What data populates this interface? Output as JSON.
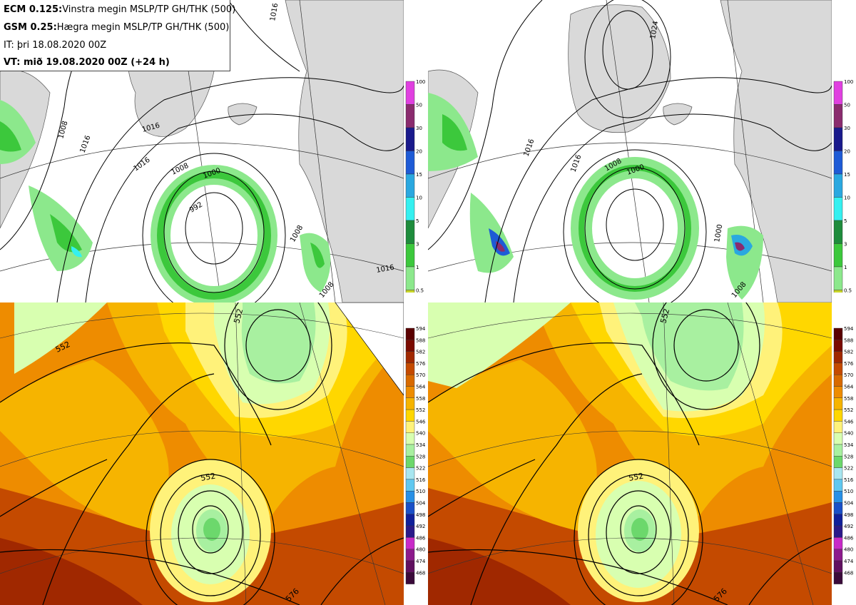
{
  "info": {
    "line1_bold": "ECM 0.125:",
    "line1_text": "Vinstra megin MSLP/TP GH/THK (500)",
    "line2_bold": "GSM 0.25:",
    "line2_text": "Hægra megin MSLP/TP GH/THK (500)",
    "line3": "IT: þri 18.08.2020 00Z",
    "line4": "VT: mið 19.08.2020 00Z (+24 h)"
  },
  "precip_colorbar": {
    "labels": [
      "100",
      "50",
      "30",
      "20",
      "15",
      "10",
      "5",
      "3",
      "1",
      "0.5"
    ],
    "colors": [
      "#e040e0",
      "#8a2b6e",
      "#1a1a8c",
      "#1e5bd6",
      "#2aa8e0",
      "#35f0f0",
      "#1e8c3c",
      "#3cc83c",
      "#8ce88c",
      "#c8d628"
    ]
  },
  "thickness_colorbar": {
    "labels": [
      "594",
      "588",
      "582",
      "576",
      "570",
      "564",
      "558",
      "552",
      "546",
      "540",
      "534",
      "528",
      "522",
      "516",
      "510",
      "504",
      "498",
      "492",
      "486",
      "480",
      "474",
      "468"
    ],
    "colors": [
      "#5a0000",
      "#7a0a00",
      "#a02800",
      "#c44a00",
      "#d86a00",
      "#ee8c00",
      "#f6b400",
      "#ffd700",
      "#fff27a",
      "#d8ffb0",
      "#a8f0a0",
      "#6cd86c",
      "#a8e6f0",
      "#60c8f0",
      "#2890e6",
      "#1a50c8",
      "#10209a",
      "#2a1a8a",
      "#c82ac8",
      "#8c1a8c",
      "#601060",
      "#3a0a3a"
    ]
  },
  "contour_labels": {
    "top_left": [
      "1016",
      "1016",
      "1008",
      "1000",
      "992",
      "1008",
      "1016",
      "1016",
      "1008",
      "1008",
      "1016"
    ],
    "top_right": [
      "1024",
      "1016",
      "1016",
      "1008",
      "1000",
      "1000",
      "1008"
    ],
    "bottom_left": [
      "552",
      "552",
      "552",
      "576"
    ],
    "bottom_right": [
      "552",
      "552",
      "576"
    ]
  },
  "colors": {
    "land": "#d9d9d9",
    "sea": "#ffffff",
    "contour": "#000000"
  }
}
